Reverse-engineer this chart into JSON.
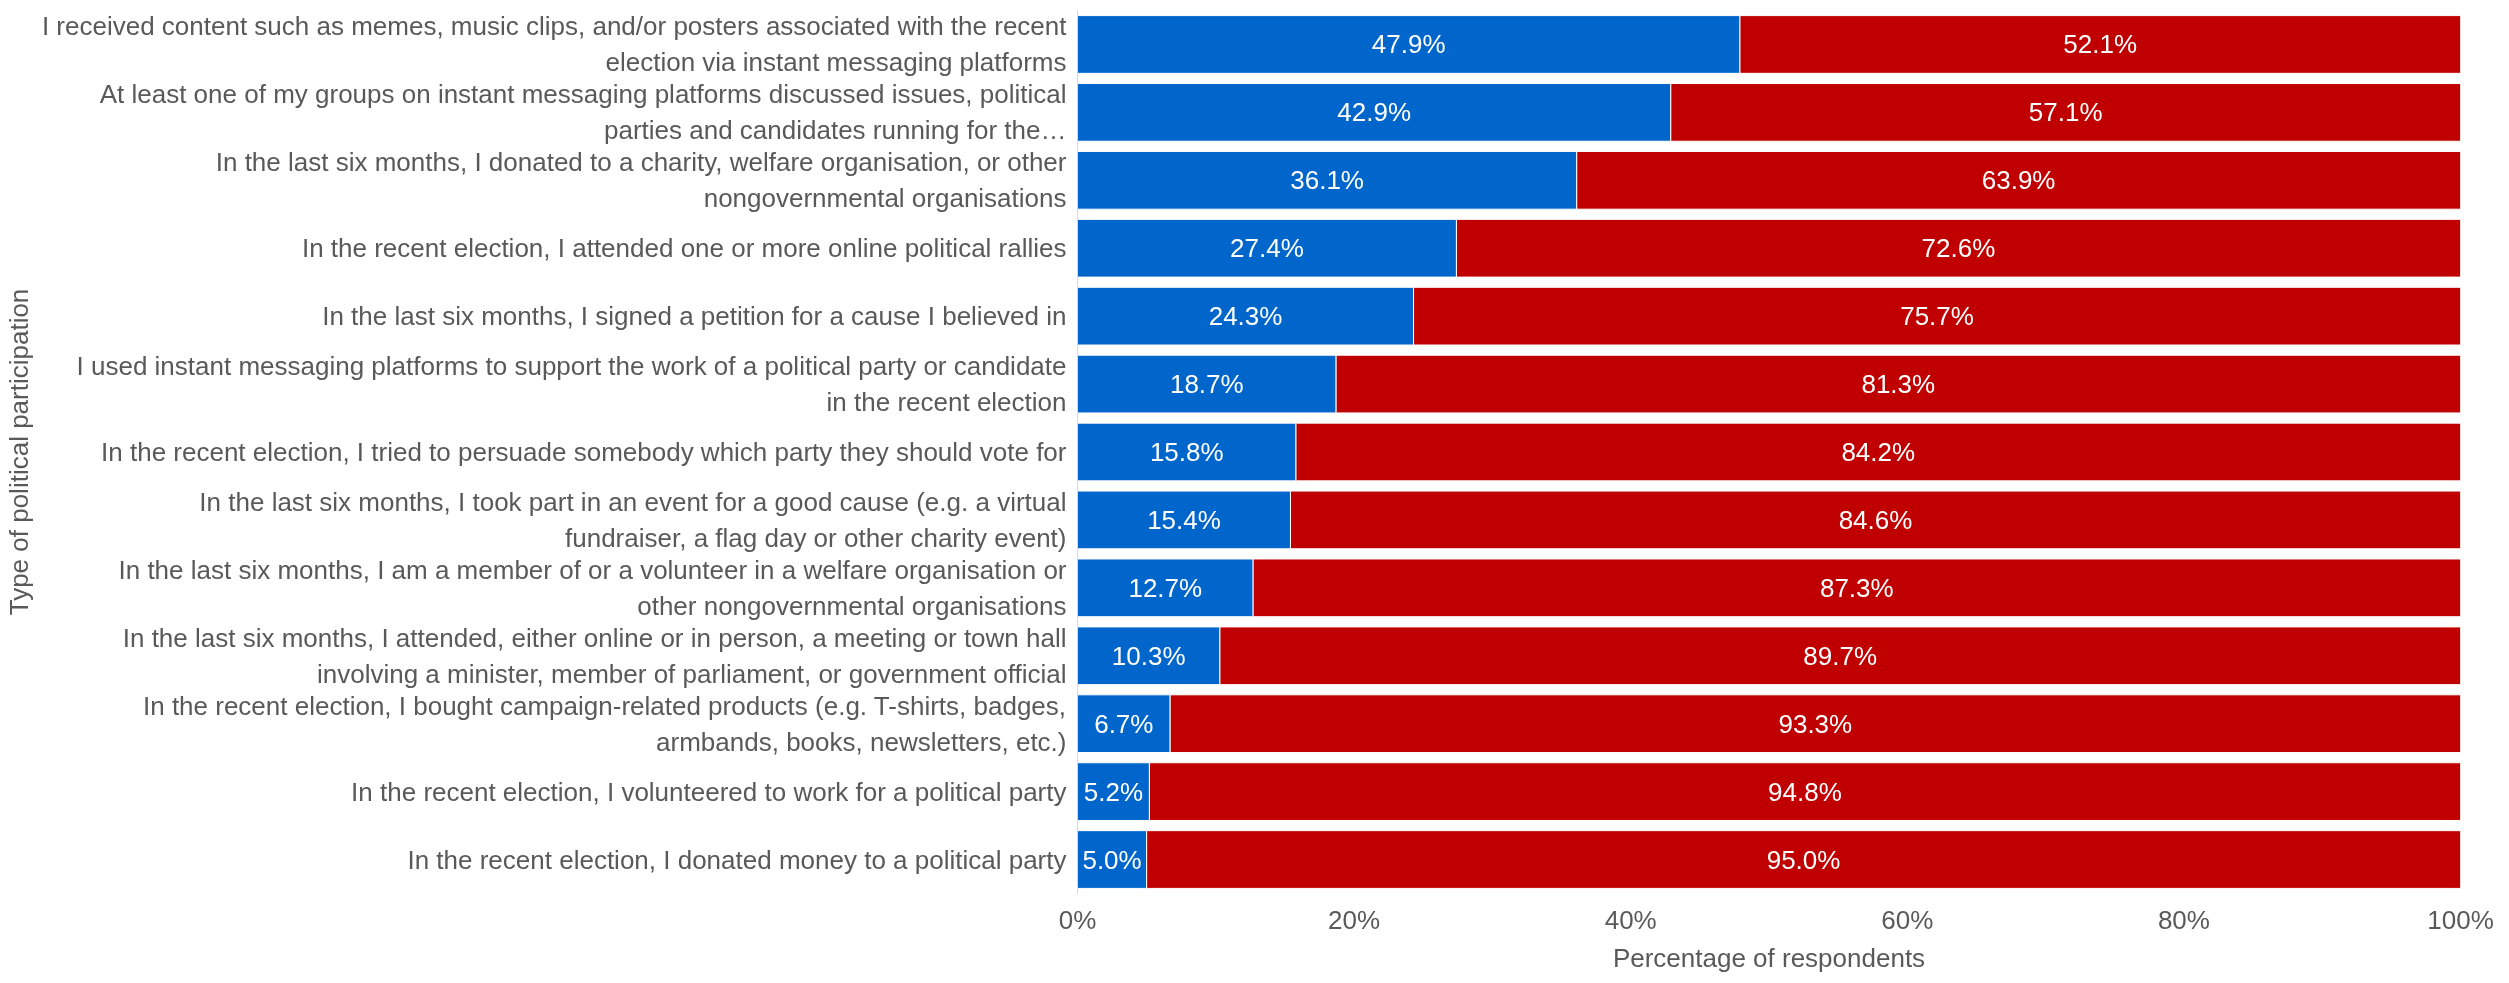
{
  "chart_data": {
    "type": "bar",
    "orientation": "horizontal",
    "stacked": true,
    "xlabel": "Percentage of respondents",
    "ylabel": "Type of political participation",
    "categories": [
      "I received content such as memes, music clips, and/or posters associated with the recent election via instant messaging platforms",
      "At least one of my groups on instant messaging platforms discussed issues, political parties and candidates running for the…",
      "In the last six months, I donated to a charity, welfare organisation, or other nongovernmental organisations",
      "In the recent election, I attended one or more online political rallies",
      "In the last six months, I signed a petition for a cause I believed in",
      "I used instant messaging platforms to support the work of a political party or candidate in the recent election",
      "In the recent election, I tried to persuade somebody which party they should vote for",
      "In the last six months, I took part in an event for a good cause (e.g. a virtual fundraiser, a flag day or other charity event)",
      "In the last six months, I am a member of or a volunteer in a welfare organisation or other nongovernmental organisations",
      "In the last six months, I attended, either online or in person, a meeting or town hall involving a minister, member of parliament, or government official",
      "In the recent election, I bought campaign-related products (e.g. T-shirts, badges, armbands, books, newsletters, etc.)",
      "In the recent election, I volunteered to work for a political party",
      "In the recent election, I donated money to a political party"
    ],
    "series": [
      {
        "color": "#0066cc",
        "values": [
          47.9,
          42.9,
          36.1,
          27.4,
          24.3,
          18.7,
          15.8,
          15.4,
          12.7,
          10.3,
          6.7,
          5.2,
          5.0
        ],
        "value_labels": [
          "47.9%",
          "42.9%",
          "36.1%",
          "27.4%",
          "24.3%",
          "18.7%",
          "15.8%",
          "15.4%",
          "12.7%",
          "10.3%",
          "6.7%",
          "5.2%",
          "5.0%"
        ]
      },
      {
        "color": "#c00000",
        "values": [
          52.1,
          57.1,
          63.9,
          72.6,
          75.7,
          81.3,
          84.2,
          84.6,
          87.3,
          89.7,
          93.3,
          94.8,
          95.0
        ],
        "value_labels": [
          "52.1%",
          "57.1%",
          "63.9%",
          "72.6%",
          "75.7%",
          "81.3%",
          "84.2%",
          "84.6%",
          "87.3%",
          "89.7%",
          "93.3%",
          "94.8%",
          "95.0%"
        ]
      }
    ],
    "xlim": [
      0,
      100
    ],
    "xticks": [
      {
        "value": 0,
        "label": "0%"
      },
      {
        "value": 20,
        "label": "20%"
      },
      {
        "value": 40,
        "label": "40%"
      },
      {
        "value": 60,
        "label": "60%"
      },
      {
        "value": 80,
        "label": "80%"
      },
      {
        "value": 100,
        "label": "100%"
      }
    ],
    "grid": false
  }
}
